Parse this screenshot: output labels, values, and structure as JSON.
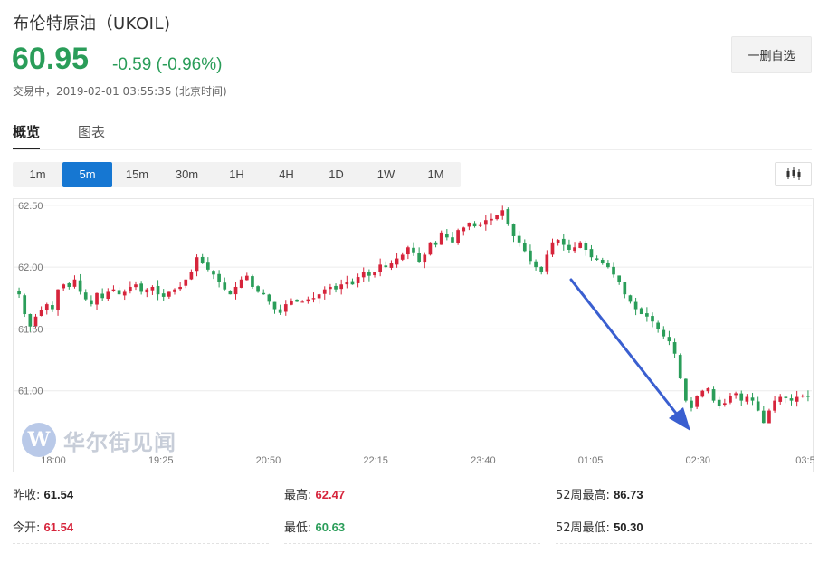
{
  "header": {
    "title": "布伦特原油（UKOIL)",
    "price": "60.95",
    "change": "-0.59 (-0.96%)",
    "status": "交易中，2019-02-01 03:55:35 (北京时间)",
    "watch_button": "一删自选"
  },
  "tabs": [
    {
      "label": "概览",
      "active": true
    },
    {
      "label": "图表",
      "active": false
    }
  ],
  "ranges": [
    {
      "label": "1m",
      "active": false
    },
    {
      "label": "5m",
      "active": true
    },
    {
      "label": "15m",
      "active": false
    },
    {
      "label": "30m",
      "active": false
    },
    {
      "label": "1H",
      "active": false
    },
    {
      "label": "4H",
      "active": false
    },
    {
      "label": "1D",
      "active": false
    },
    {
      "label": "1W",
      "active": false
    },
    {
      "label": "1M",
      "active": false
    }
  ],
  "watermark": {
    "logo_letter": "W",
    "text": "华尔街见闻"
  },
  "colors": {
    "up": "#d6243b",
    "down": "#2a9d59",
    "accent": "#1677d2",
    "arrow": "#3a5fd0"
  },
  "chart_data": {
    "type": "candlestick",
    "x_ticks": [
      "18:00",
      "19:25",
      "20:50",
      "22:15",
      "23:40",
      "01:05",
      "02:30",
      "03:5"
    ],
    "y_ticks": [
      "62.50",
      "62.00",
      "61.50",
      "61.00"
    ],
    "ylim": [
      60.5,
      62.55
    ],
    "grid": true,
    "up_color": "red",
    "down_color": "green",
    "closes": [
      61.78,
      61.62,
      61.52,
      61.6,
      61.65,
      61.7,
      61.66,
      61.82,
      61.86,
      61.84,
      61.9,
      61.8,
      61.74,
      61.7,
      61.79,
      61.75,
      61.8,
      61.82,
      61.78,
      61.8,
      61.84,
      61.86,
      61.8,
      61.82,
      61.84,
      61.78,
      61.76,
      61.8,
      61.82,
      61.84,
      61.9,
      61.96,
      62.08,
      62.03,
      61.98,
      61.94,
      61.88,
      61.82,
      61.78,
      61.84,
      61.9,
      61.93,
      61.84,
      61.8,
      61.78,
      61.72,
      61.66,
      61.63,
      61.7,
      61.73,
      61.72,
      61.72,
      61.74,
      61.75,
      61.78,
      61.82,
      61.84,
      61.82,
      61.86,
      61.88,
      61.86,
      61.92,
      61.96,
      61.93,
      61.96,
      62.02,
      62.0,
      62.03,
      62.07,
      62.1,
      62.16,
      62.12,
      62.04,
      62.1,
      62.2,
      62.18,
      62.28,
      62.24,
      62.2,
      62.3,
      62.32,
      62.36,
      62.33,
      62.34,
      62.38,
      62.39,
      62.42,
      62.46,
      62.35,
      62.25,
      62.2,
      62.13,
      62.05,
      62.0,
      61.96,
      62.1,
      62.2,
      62.22,
      62.18,
      62.14,
      62.16,
      62.2,
      62.14,
      62.08,
      62.06,
      62.03,
      62.0,
      61.94,
      61.88,
      61.78,
      61.72,
      61.66,
      61.62,
      61.6,
      61.56,
      61.5,
      61.44,
      61.4,
      61.3,
      61.1,
      60.92,
      60.86,
      60.96,
      61.0,
      61.02,
      60.92,
      60.88,
      60.9,
      60.96,
      60.98,
      60.92,
      60.95,
      60.92,
      60.84,
      60.74,
      60.84,
      60.92,
      60.95,
      60.94,
      60.92,
      60.95,
      60.96,
      60.95
    ],
    "annotation": "downward arrow"
  },
  "stats": [
    {
      "label": "昨收:",
      "value": "61.54",
      "color": "neutral"
    },
    {
      "label": "最高:",
      "value": "62.47",
      "color": "up"
    },
    {
      "label": "52周最高:",
      "value": "86.73",
      "color": "neutral"
    },
    {
      "label": "今开:",
      "value": "61.54",
      "color": "up"
    },
    {
      "label": "最低:",
      "value": "60.63",
      "color": "down"
    },
    {
      "label": "52周最低:",
      "value": "50.30",
      "color": "neutral"
    }
  ]
}
